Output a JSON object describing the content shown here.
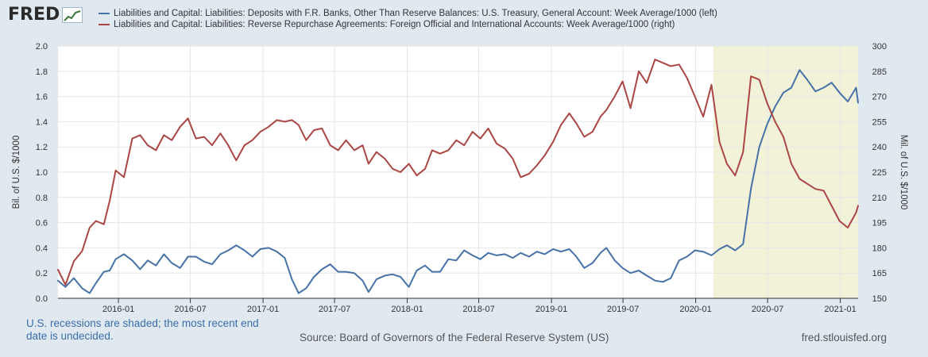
{
  "header": {
    "logo_text": "FRED",
    "logo_icon": "chart-line-icon"
  },
  "legend": [
    {
      "label": "Liabilities and Capital: Liabilities: Deposits with F.R. Banks, Other Than Reserve Balances: U.S. Treasury, General Account: Week Average/1000 (left)",
      "color": "#4572a7"
    },
    {
      "label": "Liabilities and Capital: Liabilities: Reverse Repurchase Agreements: Foreign Official and International Accounts: Week Average/1000 (right)",
      "color": "#aa4643"
    }
  ],
  "footer": {
    "recession_note": "U.S. recessions are shaded; the most recent end date is undecided.",
    "source": "Source: Board of Governors of the Federal Reserve System (US)",
    "site": "fred.stlouisfed.org"
  },
  "colors": {
    "background": "#e1e9f0",
    "plot_background": "#ffffff",
    "recession_shade": "#f2f2d8",
    "gridline": "#e6e6e6"
  },
  "chart_data": {
    "type": "line",
    "ylabel_left": "Bil. of U.S. $/1000",
    "ylabel_right": "Mil. of U.S. $/1000",
    "ylim_left": [
      0,
      2.0
    ],
    "ylim_right": [
      150,
      300
    ],
    "yticks_left": [
      "0.0",
      "0.2",
      "0.4",
      "0.6",
      "0.8",
      "1.0",
      "1.2",
      "1.4",
      "1.6",
      "1.8",
      "2.0"
    ],
    "yticks_right": [
      "150",
      "165",
      "180",
      "195",
      "210",
      "225",
      "240",
      "255",
      "270",
      "285",
      "300"
    ],
    "x_range": [
      "2015-08-01",
      "2021-02-15"
    ],
    "xtick_labels": [
      "2016-01",
      "2016-07",
      "2017-01",
      "2017-07",
      "2018-01",
      "2018-07",
      "2019-01",
      "2019-07",
      "2020-01",
      "2020-07",
      "2021-01"
    ],
    "recession": {
      "start": "2020-02-15",
      "end": "2021-02-15"
    },
    "grid": true,
    "series": [
      {
        "name": "Liabilities and Capital: Liabilities: Deposits with F.R. Banks, Other Than Reserve Balances: U.S. Treasury, General Account: Week Average/1000 (left)",
        "axis": "left",
        "color": "#4572a7",
        "points": [
          [
            "2015-08-01",
            0.14
          ],
          [
            "2015-08-20",
            0.09
          ],
          [
            "2015-09-10",
            0.16
          ],
          [
            "2015-10-01",
            0.08
          ],
          [
            "2015-10-20",
            0.04
          ],
          [
            "2015-11-05",
            0.12
          ],
          [
            "2015-11-25",
            0.21
          ],
          [
            "2015-12-10",
            0.22
          ],
          [
            "2015-12-25",
            0.31
          ],
          [
            "2016-01-15",
            0.35
          ],
          [
            "2016-02-05",
            0.3
          ],
          [
            "2016-02-25",
            0.23
          ],
          [
            "2016-03-15",
            0.3
          ],
          [
            "2016-04-05",
            0.26
          ],
          [
            "2016-04-25",
            0.35
          ],
          [
            "2016-05-15",
            0.28
          ],
          [
            "2016-06-05",
            0.24
          ],
          [
            "2016-06-25",
            0.33
          ],
          [
            "2016-07-15",
            0.33
          ],
          [
            "2016-08-05",
            0.29
          ],
          [
            "2016-08-25",
            0.27
          ],
          [
            "2016-09-15",
            0.35
          ],
          [
            "2016-10-05",
            0.38
          ],
          [
            "2016-10-25",
            0.42
          ],
          [
            "2016-11-15",
            0.38
          ],
          [
            "2016-12-05",
            0.33
          ],
          [
            "2016-12-25",
            0.39
          ],
          [
            "2017-01-15",
            0.4
          ],
          [
            "2017-02-05",
            0.37
          ],
          [
            "2017-02-25",
            0.32
          ],
          [
            "2017-03-15",
            0.15
          ],
          [
            "2017-04-01",
            0.04
          ],
          [
            "2017-04-20",
            0.08
          ],
          [
            "2017-05-10",
            0.17
          ],
          [
            "2017-05-30",
            0.23
          ],
          [
            "2017-06-20",
            0.27
          ],
          [
            "2017-07-10",
            0.21
          ],
          [
            "2017-07-30",
            0.21
          ],
          [
            "2017-08-20",
            0.2
          ],
          [
            "2017-09-10",
            0.14
          ],
          [
            "2017-09-25",
            0.05
          ],
          [
            "2017-10-15",
            0.15
          ],
          [
            "2017-11-05",
            0.18
          ],
          [
            "2017-11-25",
            0.19
          ],
          [
            "2017-12-15",
            0.17
          ],
          [
            "2018-01-05",
            0.09
          ],
          [
            "2018-01-25",
            0.22
          ],
          [
            "2018-02-15",
            0.26
          ],
          [
            "2018-03-05",
            0.21
          ],
          [
            "2018-03-25",
            0.21
          ],
          [
            "2018-04-15",
            0.31
          ],
          [
            "2018-05-05",
            0.3
          ],
          [
            "2018-05-25",
            0.38
          ],
          [
            "2018-06-15",
            0.34
          ],
          [
            "2018-07-05",
            0.31
          ],
          [
            "2018-07-25",
            0.36
          ],
          [
            "2018-08-15",
            0.34
          ],
          [
            "2018-09-05",
            0.35
          ],
          [
            "2018-09-25",
            0.32
          ],
          [
            "2018-10-15",
            0.36
          ],
          [
            "2018-11-05",
            0.33
          ],
          [
            "2018-11-25",
            0.37
          ],
          [
            "2018-12-15",
            0.35
          ],
          [
            "2019-01-05",
            0.39
          ],
          [
            "2019-01-25",
            0.37
          ],
          [
            "2019-02-15",
            0.39
          ],
          [
            "2019-03-05",
            0.33
          ],
          [
            "2019-03-25",
            0.24
          ],
          [
            "2019-04-15",
            0.28
          ],
          [
            "2019-05-05",
            0.36
          ],
          [
            "2019-05-20",
            0.4
          ],
          [
            "2019-06-10",
            0.3
          ],
          [
            "2019-06-30",
            0.24
          ],
          [
            "2019-07-20",
            0.2
          ],
          [
            "2019-08-10",
            0.22
          ],
          [
            "2019-08-30",
            0.18
          ],
          [
            "2019-09-20",
            0.14
          ],
          [
            "2019-10-10",
            0.13
          ],
          [
            "2019-10-30",
            0.16
          ],
          [
            "2019-11-20",
            0.3
          ],
          [
            "2019-12-10",
            0.33
          ],
          [
            "2019-12-30",
            0.38
          ],
          [
            "2020-01-20",
            0.37
          ],
          [
            "2020-02-10",
            0.34
          ],
          [
            "2020-03-01",
            0.39
          ],
          [
            "2020-03-20",
            0.42
          ],
          [
            "2020-04-10",
            0.38
          ],
          [
            "2020-04-30",
            0.43
          ],
          [
            "2020-05-20",
            0.87
          ],
          [
            "2020-06-10",
            1.2
          ],
          [
            "2020-06-30",
            1.38
          ],
          [
            "2020-07-20",
            1.52
          ],
          [
            "2020-08-10",
            1.63
          ],
          [
            "2020-08-30",
            1.67
          ],
          [
            "2020-09-20",
            1.81
          ],
          [
            "2020-10-10",
            1.73
          ],
          [
            "2020-10-30",
            1.64
          ],
          [
            "2020-11-20",
            1.67
          ],
          [
            "2020-12-10",
            1.71
          ],
          [
            "2020-12-30",
            1.63
          ],
          [
            "2021-01-20",
            1.56
          ],
          [
            "2021-02-10",
            1.67
          ],
          [
            "2021-02-15",
            1.55
          ]
        ]
      },
      {
        "name": "Liabilities and Capital: Liabilities: Reverse Repurchase Agreements: Foreign Official and International Accounts: Week Average/1000 (right)",
        "axis": "right",
        "color": "#aa4643",
        "points": [
          [
            "2015-08-01",
            167
          ],
          [
            "2015-08-20",
            158
          ],
          [
            "2015-09-10",
            172
          ],
          [
            "2015-10-01",
            178
          ],
          [
            "2015-10-20",
            192
          ],
          [
            "2015-11-05",
            196
          ],
          [
            "2015-11-25",
            194
          ],
          [
            "2015-12-10",
            208
          ],
          [
            "2015-12-25",
            226
          ],
          [
            "2016-01-15",
            222
          ],
          [
            "2016-02-05",
            245
          ],
          [
            "2016-02-25",
            247
          ],
          [
            "2016-03-15",
            241
          ],
          [
            "2016-04-05",
            238
          ],
          [
            "2016-04-25",
            247
          ],
          [
            "2016-05-15",
            244
          ],
          [
            "2016-06-05",
            252
          ],
          [
            "2016-06-25",
            257
          ],
          [
            "2016-07-15",
            245
          ],
          [
            "2016-08-05",
            246
          ],
          [
            "2016-08-25",
            241
          ],
          [
            "2016-09-15",
            248
          ],
          [
            "2016-10-05",
            241
          ],
          [
            "2016-10-25",
            232
          ],
          [
            "2016-11-15",
            241
          ],
          [
            "2016-12-05",
            244
          ],
          [
            "2016-12-25",
            249
          ],
          [
            "2017-01-15",
            252
          ],
          [
            "2017-02-05",
            256
          ],
          [
            "2017-02-25",
            255
          ],
          [
            "2017-03-15",
            256
          ],
          [
            "2017-04-01",
            253
          ],
          [
            "2017-04-20",
            244
          ],
          [
            "2017-05-10",
            250
          ],
          [
            "2017-05-30",
            251
          ],
          [
            "2017-06-20",
            241
          ],
          [
            "2017-07-10",
            238
          ],
          [
            "2017-07-30",
            244
          ],
          [
            "2017-08-20",
            238
          ],
          [
            "2017-09-10",
            241
          ],
          [
            "2017-09-25",
            230
          ],
          [
            "2017-10-15",
            237
          ],
          [
            "2017-11-05",
            233
          ],
          [
            "2017-11-25",
            227
          ],
          [
            "2017-12-15",
            225
          ],
          [
            "2018-01-05",
            230
          ],
          [
            "2018-01-25",
            223
          ],
          [
            "2018-02-15",
            227
          ],
          [
            "2018-03-05",
            238
          ],
          [
            "2018-03-25",
            236
          ],
          [
            "2018-04-15",
            238
          ],
          [
            "2018-05-05",
            244
          ],
          [
            "2018-05-25",
            241
          ],
          [
            "2018-06-15",
            249
          ],
          [
            "2018-07-05",
            245
          ],
          [
            "2018-07-25",
            251
          ],
          [
            "2018-08-15",
            242
          ],
          [
            "2018-09-05",
            239
          ],
          [
            "2018-09-25",
            233
          ],
          [
            "2018-10-15",
            222
          ],
          [
            "2018-11-05",
            224
          ],
          [
            "2018-11-25",
            229
          ],
          [
            "2018-12-15",
            235
          ],
          [
            "2019-01-05",
            243
          ],
          [
            "2019-01-25",
            253
          ],
          [
            "2019-02-15",
            260
          ],
          [
            "2019-03-05",
            254
          ],
          [
            "2019-03-25",
            246
          ],
          [
            "2019-04-15",
            249
          ],
          [
            "2019-05-05",
            258
          ],
          [
            "2019-05-20",
            262
          ],
          [
            "2019-06-10",
            270
          ],
          [
            "2019-06-30",
            279
          ],
          [
            "2019-07-20",
            263
          ],
          [
            "2019-08-10",
            285
          ],
          [
            "2019-08-30",
            278
          ],
          [
            "2019-09-20",
            292
          ],
          [
            "2019-10-10",
            290
          ],
          [
            "2019-10-30",
            288
          ],
          [
            "2019-11-20",
            289
          ],
          [
            "2019-12-10",
            281
          ],
          [
            "2019-12-30",
            270
          ],
          [
            "2020-01-20",
            258
          ],
          [
            "2020-02-10",
            277
          ],
          [
            "2020-03-01",
            243
          ],
          [
            "2020-03-20",
            230
          ],
          [
            "2020-04-10",
            223
          ],
          [
            "2020-04-30",
            237
          ],
          [
            "2020-05-20",
            282
          ],
          [
            "2020-06-10",
            280
          ],
          [
            "2020-06-30",
            266
          ],
          [
            "2020-07-20",
            255
          ],
          [
            "2020-08-10",
            246
          ],
          [
            "2020-08-30",
            230
          ],
          [
            "2020-09-20",
            221
          ],
          [
            "2020-10-10",
            218
          ],
          [
            "2020-10-30",
            215
          ],
          [
            "2020-11-20",
            214
          ],
          [
            "2020-12-10",
            205
          ],
          [
            "2020-12-30",
            196
          ],
          [
            "2021-01-20",
            192
          ],
          [
            "2021-02-10",
            201
          ],
          [
            "2021-02-15",
            205
          ]
        ]
      }
    ]
  }
}
